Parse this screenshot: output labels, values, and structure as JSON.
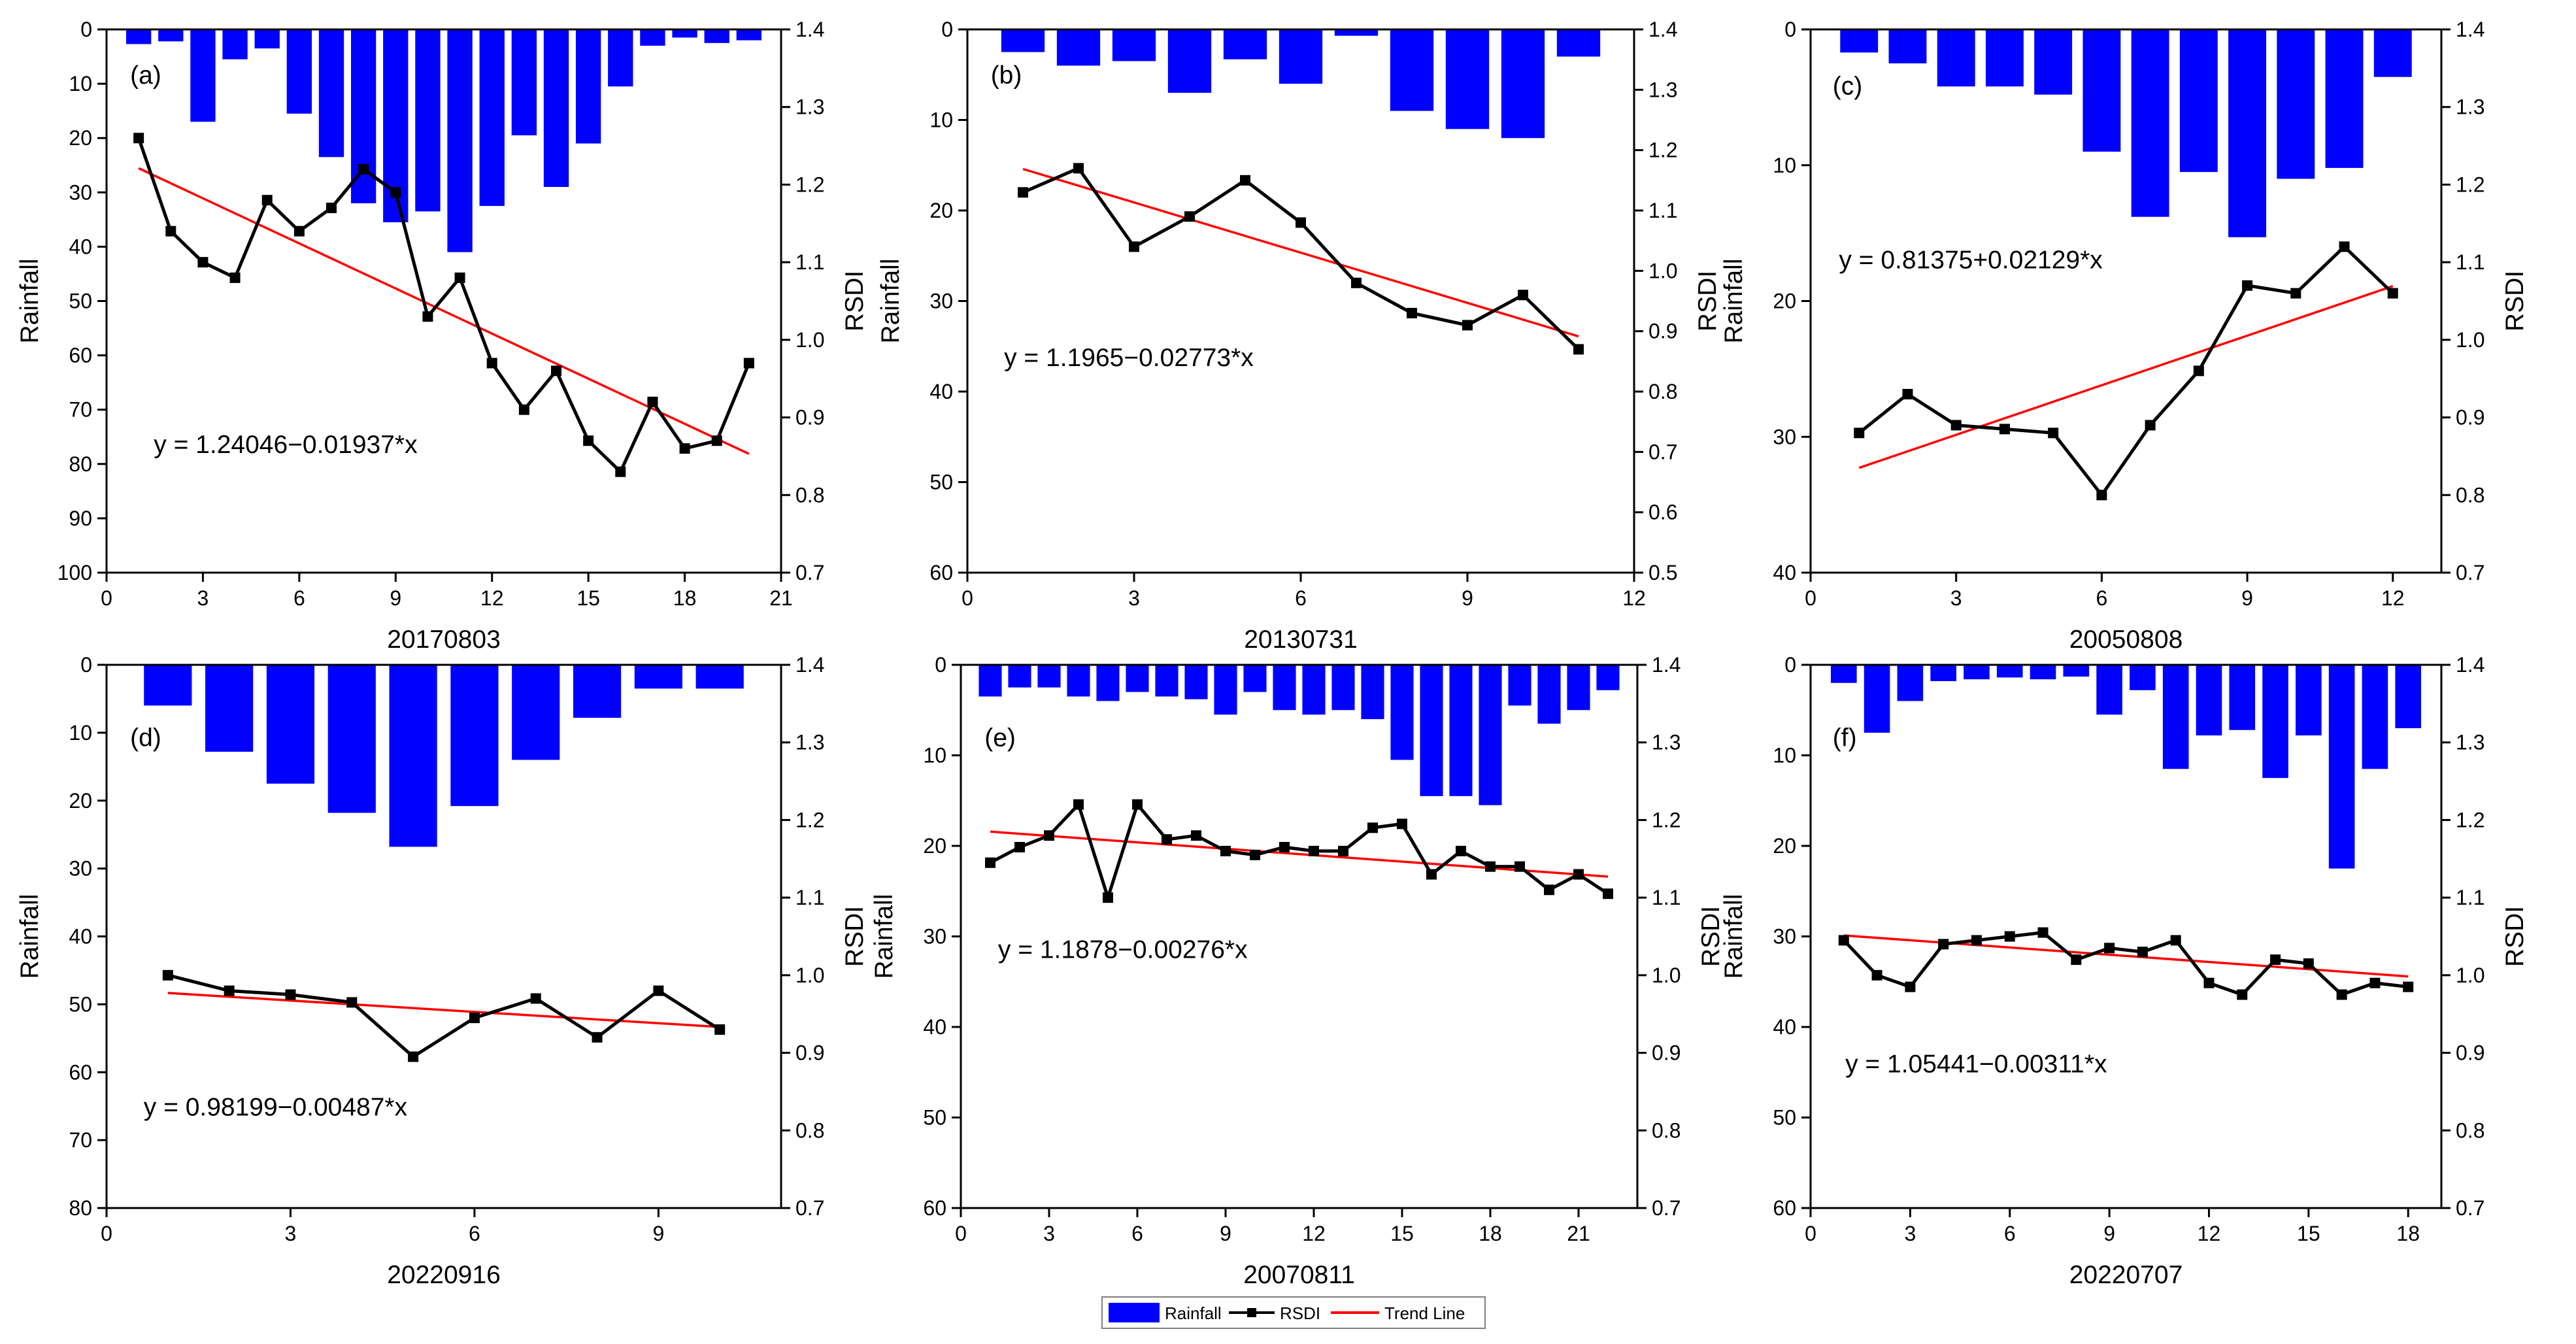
{
  "chart_data": [
    {
      "type": "bar",
      "panel_label": "(a)",
      "xlabel": "20170803",
      "ylabel_left": "Rainfall",
      "ylabel_right": "RSDI",
      "xlim": [
        0,
        21
      ],
      "xticks": [
        0,
        3,
        6,
        9,
        12,
        15,
        18,
        21
      ],
      "ylim_left": [
        100,
        0
      ],
      "yticks_left": [
        0,
        10,
        20,
        30,
        40,
        50,
        60,
        70,
        80,
        90,
        100
      ],
      "ylim_right": [
        0.7,
        1.4
      ],
      "yticks_right": [
        "0.7",
        "0.8",
        "0.9",
        "1.0",
        "1.1",
        "1.2",
        "1.3",
        "1.4"
      ],
      "x": [
        1,
        2,
        3,
        4,
        5,
        6,
        7,
        8,
        9,
        10,
        11,
        12,
        13,
        14,
        15,
        16,
        17,
        18,
        19,
        20
      ],
      "rainfall": [
        2.7,
        2.2,
        17,
        5.5,
        3.5,
        15.5,
        23.5,
        32,
        35.5,
        33.5,
        41,
        32.5,
        19.5,
        29,
        21,
        10.5,
        3,
        1.5,
        2.5,
        2
      ],
      "rsdi": [
        1.26,
        1.14,
        1.1,
        1.08,
        1.18,
        1.14,
        1.17,
        1.22,
        1.19,
        1.03,
        1.08,
        0.97,
        0.91,
        0.96,
        0.87,
        0.83,
        0.92,
        0.86,
        0.87,
        0.97
      ],
      "trend": {
        "intercept": 1.24046,
        "slope": -0.01937
      },
      "equation": "y = 1.24046−0.01937*x"
    },
    {
      "type": "bar",
      "panel_label": "(b)",
      "xlabel": "20130731",
      "ylabel_left": "Rainfall",
      "ylabel_right": "RSDI",
      "xlim": [
        0,
        12
      ],
      "xticks": [
        0,
        3,
        6,
        9,
        12
      ],
      "ylim_left": [
        60,
        0
      ],
      "yticks_left": [
        0,
        10,
        20,
        30,
        40,
        50,
        60
      ],
      "ylim_right": [
        0.5,
        1.4
      ],
      "yticks_right": [
        "0.5",
        "0.6",
        "0.7",
        "0.8",
        "0.9",
        "1.0",
        "1.1",
        "1.2",
        "1.3",
        "1.4"
      ],
      "x": [
        1,
        2,
        3,
        4,
        5,
        6,
        7,
        8,
        9,
        10,
        11
      ],
      "rainfall": [
        2.5,
        4,
        3.5,
        7,
        3.3,
        6,
        0.7,
        9,
        11,
        12,
        3
      ],
      "rsdi": [
        1.13,
        1.17,
        1.04,
        1.09,
        1.15,
        1.08,
        0.98,
        0.93,
        0.91,
        0.96,
        0.87
      ],
      "trend": {
        "intercept": 1.1965,
        "slope": -0.02773
      },
      "equation": "y = 1.1965−0.02773*x"
    },
    {
      "type": "bar",
      "panel_label": "(c)",
      "xlabel": "20050808",
      "ylabel_left": "Rainfall",
      "ylabel_right": "RSDI",
      "xlim": [
        0,
        13
      ],
      "xticks": [
        0,
        3,
        6,
        9,
        12
      ],
      "ylim_left": [
        40,
        0
      ],
      "yticks_left": [
        0,
        10,
        20,
        30,
        40
      ],
      "ylim_right": [
        0.7,
        1.4
      ],
      "yticks_right": [
        "0.7",
        "0.8",
        "0.9",
        "1.0",
        "1.1",
        "1.2",
        "1.3",
        "1.4"
      ],
      "x": [
        1,
        2,
        3,
        4,
        5,
        6,
        7,
        8,
        9,
        10,
        11,
        12
      ],
      "rainfall": [
        1.7,
        2.5,
        4.2,
        4.2,
        4.8,
        9,
        13.8,
        10.5,
        15.3,
        11,
        10.2,
        3.5
      ],
      "rsdi": [
        0.88,
        0.93,
        0.89,
        0.885,
        0.88,
        0.8,
        0.89,
        0.96,
        1.07,
        1.06,
        1.12,
        1.06
      ],
      "trend": {
        "intercept": 0.81375,
        "slope": 0.02129
      },
      "equation": "y = 0.81375+0.02129*x"
    },
    {
      "type": "bar",
      "panel_label": "(d)",
      "xlabel": "20220916",
      "ylabel_left": "Rainfall",
      "ylabel_right": "RSDI",
      "xlim": [
        0,
        11
      ],
      "xticks": [
        0,
        3,
        6,
        9
      ],
      "ylim_left": [
        80,
        0
      ],
      "yticks_left": [
        0,
        10,
        20,
        30,
        40,
        50,
        60,
        70,
        80
      ],
      "ylim_right": [
        0.7,
        1.4
      ],
      "yticks_right": [
        "0.7",
        "0.8",
        "0.9",
        "1.0",
        "1.1",
        "1.2",
        "1.3",
        "1.4"
      ],
      "x": [
        1,
        2,
        3,
        4,
        5,
        6,
        7,
        8,
        9,
        10
      ],
      "rainfall": [
        6,
        12.8,
        17.5,
        21.8,
        26.8,
        20.8,
        14,
        7.8,
        3.5,
        3.5
      ],
      "rsdi": [
        1.0,
        0.98,
        0.975,
        0.965,
        0.895,
        0.945,
        0.97,
        0.92,
        0.98,
        0.93
      ],
      "trend": {
        "intercept": 0.98199,
        "slope": -0.00487
      },
      "equation": "y = 0.98199−0.00487*x"
    },
    {
      "type": "bar",
      "panel_label": "(e)",
      "xlabel": "20070811",
      "ylabel_left": "Rainfall",
      "ylabel_right": "RSDI",
      "xlim": [
        0,
        23
      ],
      "xticks": [
        0,
        3,
        6,
        9,
        12,
        15,
        18,
        21
      ],
      "ylim_left": [
        60,
        0
      ],
      "yticks_left": [
        0,
        10,
        20,
        30,
        40,
        50,
        60
      ],
      "ylim_right": [
        0.7,
        1.4
      ],
      "yticks_right": [
        "0.7",
        "0.8",
        "0.9",
        "1.0",
        "1.1",
        "1.2",
        "1.3",
        "1.4"
      ],
      "x": [
        1,
        2,
        3,
        4,
        5,
        6,
        7,
        8,
        9,
        10,
        11,
        12,
        13,
        14,
        15,
        16,
        17,
        18,
        19,
        20,
        21,
        22
      ],
      "rainfall": [
        3.5,
        2.5,
        2.5,
        3.5,
        4,
        3,
        3.5,
        3.8,
        5.5,
        3,
        5,
        5.5,
        5,
        6,
        10.5,
        14.5,
        14.5,
        15.5,
        4.5,
        6.5,
        5,
        2.8
      ],
      "rsdi": [
        1.145,
        1.165,
        1.18,
        1.22,
        1.1,
        1.22,
        1.175,
        1.18,
        1.16,
        1.155,
        1.165,
        1.16,
        1.16,
        1.19,
        1.195,
        1.13,
        1.16,
        1.14,
        1.14,
        1.11,
        1.13,
        1.105
      ],
      "trend": {
        "intercept": 1.1878,
        "slope": -0.00276
      },
      "equation": "y = 1.1878−0.00276*x"
    },
    {
      "type": "bar",
      "panel_label": "(f)",
      "xlabel": "20220707",
      "ylabel_left": "Rainfall",
      "ylabel_right": "RSDI",
      "xlim": [
        0,
        19
      ],
      "xticks": [
        0,
        3,
        6,
        9,
        12,
        15,
        18
      ],
      "ylim_left": [
        60,
        0
      ],
      "yticks_left": [
        0,
        10,
        20,
        30,
        40,
        50,
        60
      ],
      "ylim_right": [
        0.7,
        1.4
      ],
      "yticks_right": [
        "0.7",
        "0.8",
        "0.9",
        "1.0",
        "1.1",
        "1.2",
        "1.3",
        "1.4"
      ],
      "x": [
        1,
        2,
        3,
        4,
        5,
        6,
        7,
        8,
        9,
        10,
        11,
        12,
        13,
        14,
        15,
        16,
        17,
        18
      ],
      "rainfall": [
        2,
        7.5,
        4,
        1.8,
        1.6,
        1.4,
        1.6,
        1.3,
        5.5,
        2.8,
        11.5,
        7.8,
        7.2,
        12.5,
        7.8,
        22.5,
        11.5,
        7
      ],
      "rsdi": [
        1.045,
        1.0,
        0.985,
        1.04,
        1.045,
        1.05,
        1.055,
        1.02,
        1.035,
        1.03,
        1.045,
        0.99,
        0.975,
        1.02,
        1.015,
        0.975,
        0.99,
        0.985
      ],
      "trend": {
        "intercept": 1.05441,
        "slope": -0.00311
      },
      "equation": "y = 1.05441−0.00311*x"
    }
  ],
  "legend": {
    "rainfall_label": "Rainfall",
    "rsdi_label": "RSDI",
    "trend_label": "Trend Line"
  },
  "colors": {
    "bar": "#0000FF",
    "rsdi_line": "#000000",
    "trend_line": "#FF0000"
  }
}
